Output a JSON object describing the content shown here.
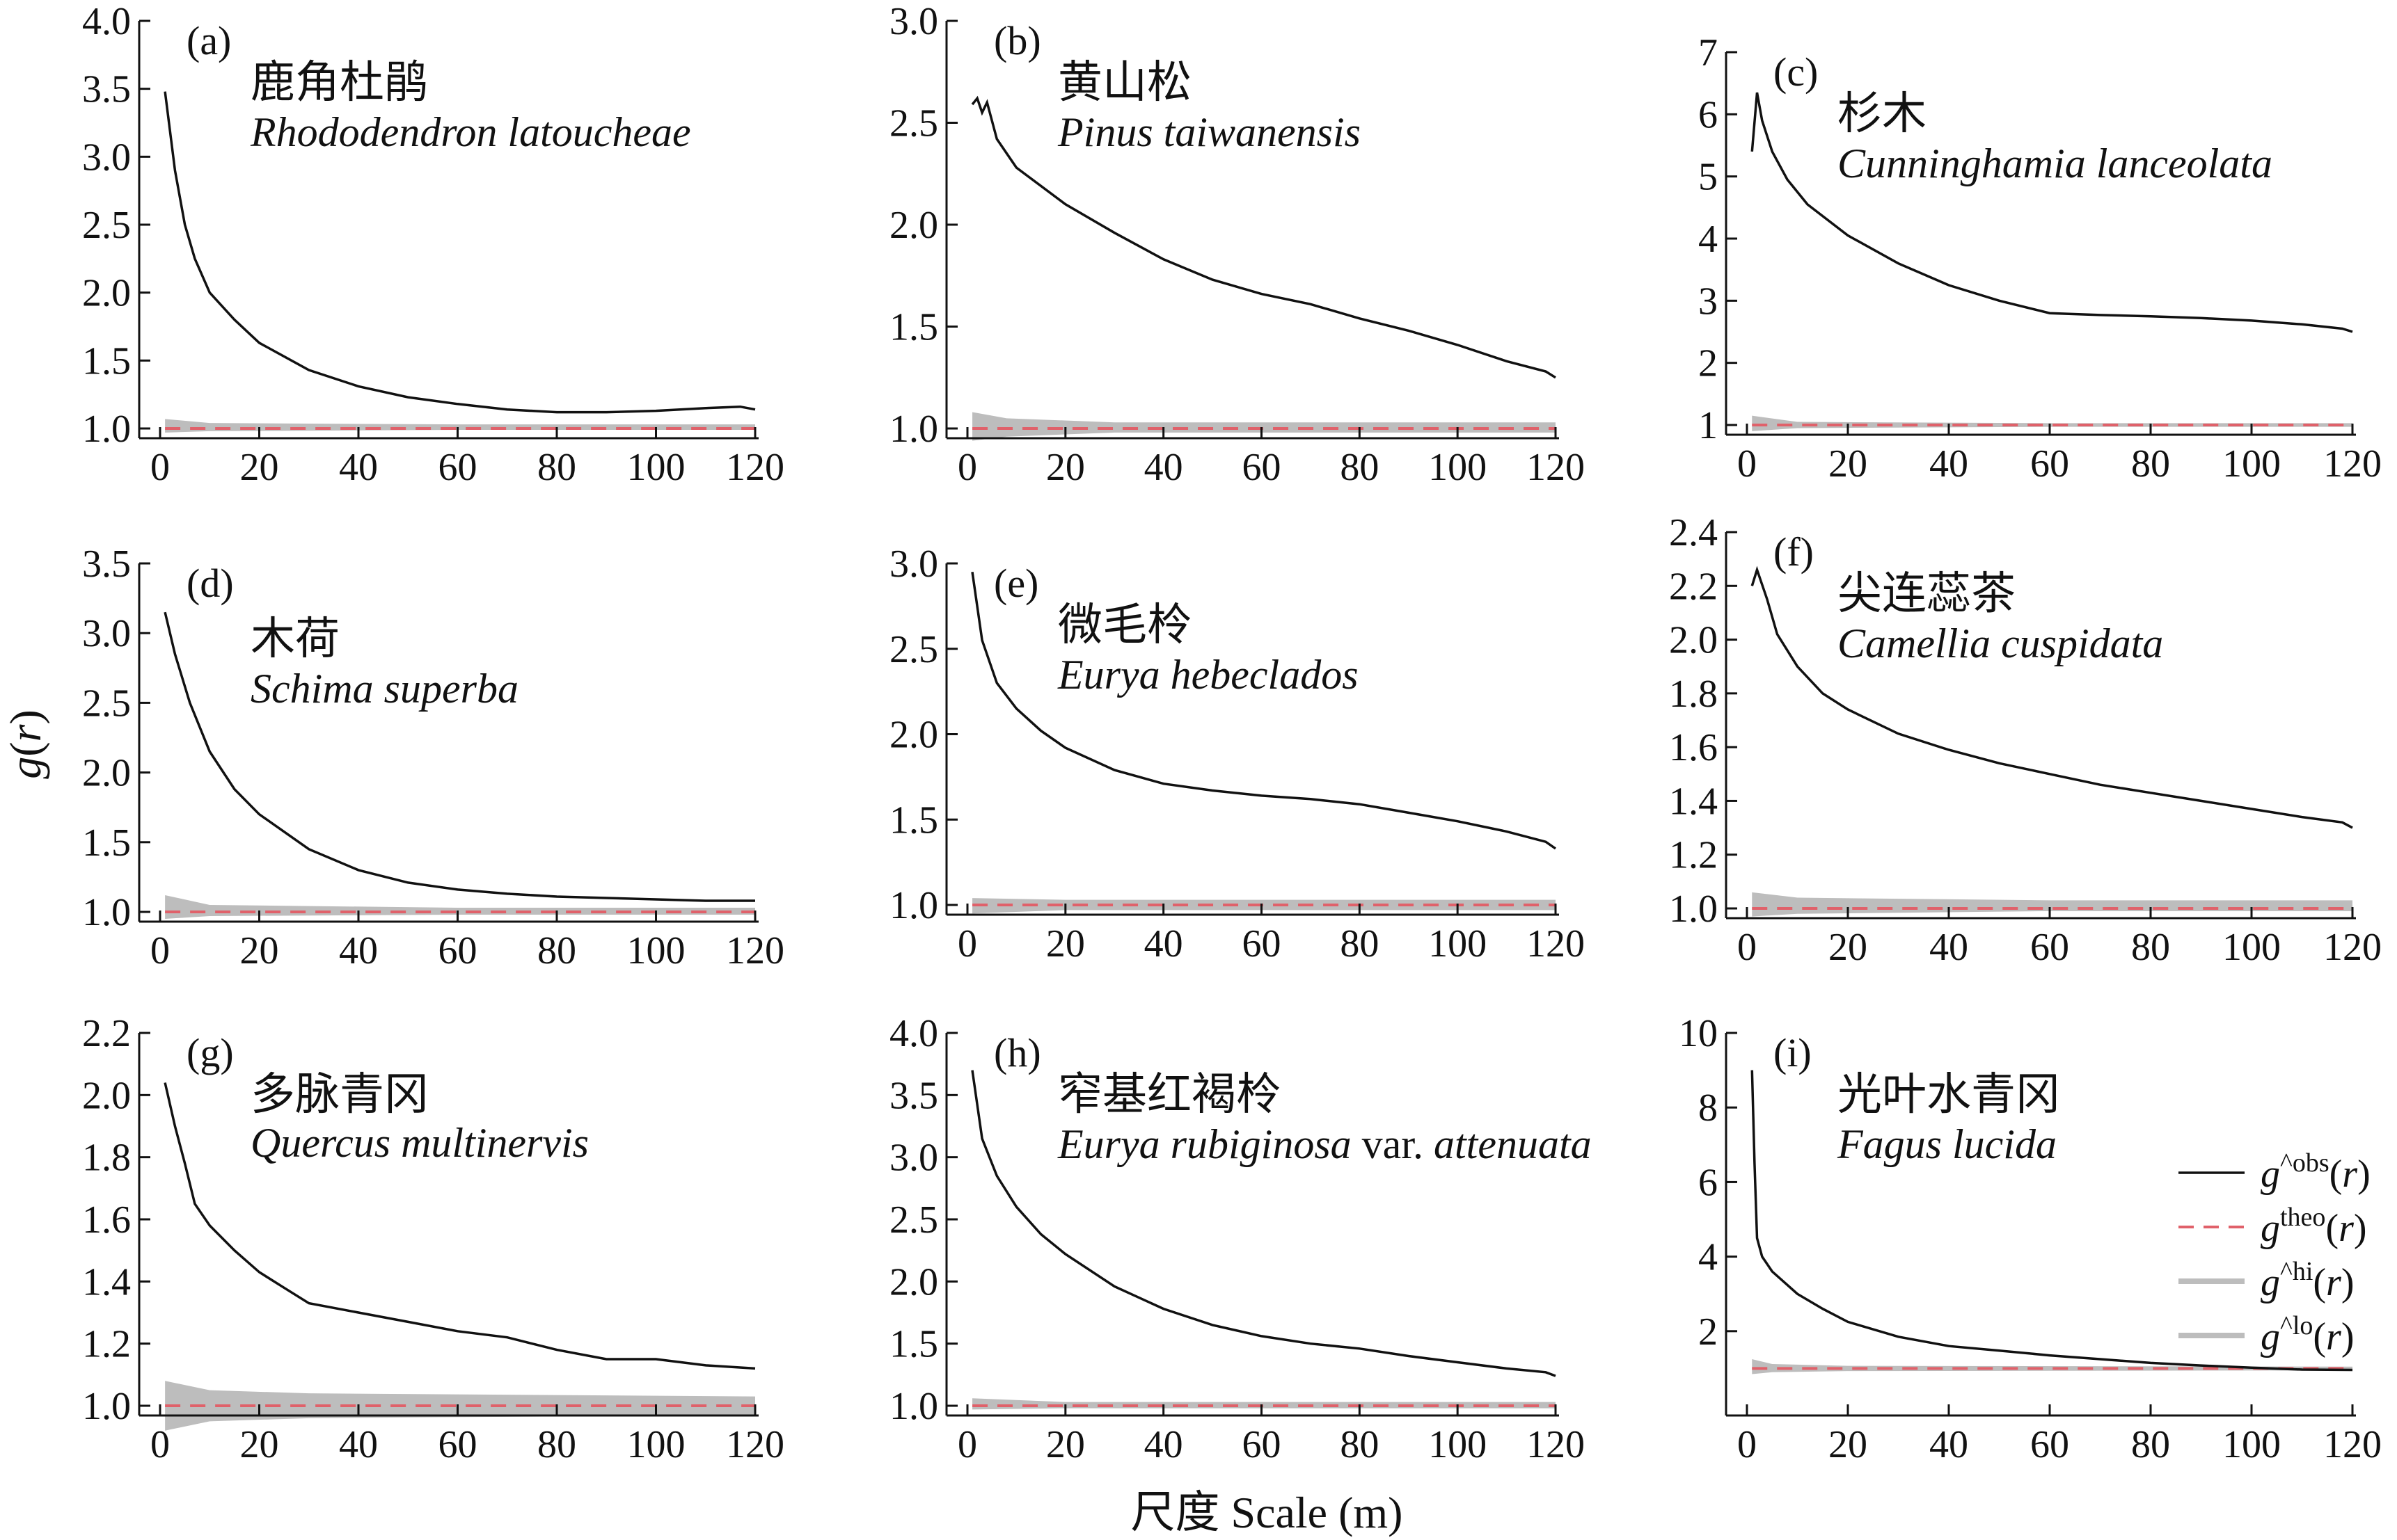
{
  "figure": {
    "ylabel_prefix": "g",
    "ylabel_var": "r",
    "xlabel": "尺度 Scale (m)"
  },
  "legend": [
    {
      "sym": "g",
      "sup": "^obs",
      "var": "r",
      "style": "obs"
    },
    {
      "sym": "g",
      "sup": "theo",
      "var": "r",
      "style": "theo"
    },
    {
      "sym": "g",
      "sup": "^hi",
      "var": "r",
      "style": "env"
    },
    {
      "sym": "g",
      "sup": "^lo",
      "var": "r",
      "style": "env"
    }
  ],
  "colors": {
    "observed": "#111111",
    "theoretical": "#e0616a",
    "envelope": "#bdbdbd"
  },
  "chart_data": [
    {
      "type": "line",
      "tag": "(a)",
      "cn": "鹿角杜鹃",
      "latin": "Rhododendron latoucheae",
      "xlim": [
        0,
        120
      ],
      "ylim": [
        1.0,
        4.0
      ],
      "xticks": [
        0,
        20,
        40,
        60,
        80,
        100,
        120
      ],
      "yticks": [
        1.0,
        1.5,
        2.0,
        2.5,
        3.0,
        3.5,
        4.0
      ],
      "ydec": 1,
      "obs": [
        [
          1,
          3.48
        ],
        [
          3,
          2.9
        ],
        [
          5,
          2.5
        ],
        [
          7,
          2.25
        ],
        [
          10,
          2.0
        ],
        [
          15,
          1.8
        ],
        [
          20,
          1.63
        ],
        [
          30,
          1.43
        ],
        [
          40,
          1.31
        ],
        [
          50,
          1.23
        ],
        [
          60,
          1.18
        ],
        [
          70,
          1.14
        ],
        [
          80,
          1.12
        ],
        [
          90,
          1.12
        ],
        [
          100,
          1.13
        ],
        [
          110,
          1.15
        ],
        [
          117,
          1.16
        ],
        [
          120,
          1.14
        ]
      ],
      "theo": 1.0,
      "env": [
        [
          1,
          0.97,
          1.07
        ],
        [
          10,
          0.98,
          1.04
        ],
        [
          60,
          0.99,
          1.03
        ],
        [
          120,
          0.99,
          1.03
        ]
      ]
    },
    {
      "type": "line",
      "tag": "(b)",
      "cn": "黄山松",
      "latin": "Pinus taiwanensis",
      "xlim": [
        0,
        120
      ],
      "ylim": [
        1.0,
        3.0
      ],
      "xticks": [
        0,
        20,
        40,
        60,
        80,
        100,
        120
      ],
      "yticks": [
        1.0,
        1.5,
        2.0,
        2.5,
        3.0
      ],
      "ydec": 1,
      "obs": [
        [
          1,
          2.59
        ],
        [
          2,
          2.62
        ],
        [
          3,
          2.55
        ],
        [
          4,
          2.6
        ],
        [
          6,
          2.42
        ],
        [
          10,
          2.28
        ],
        [
          20,
          2.1
        ],
        [
          30,
          1.96
        ],
        [
          40,
          1.83
        ],
        [
          50,
          1.73
        ],
        [
          60,
          1.66
        ],
        [
          70,
          1.61
        ],
        [
          80,
          1.54
        ],
        [
          90,
          1.48
        ],
        [
          100,
          1.41
        ],
        [
          110,
          1.33
        ],
        [
          118,
          1.28
        ],
        [
          120,
          1.25
        ]
      ],
      "theo": 1.0,
      "env": [
        [
          1,
          0.94,
          1.08
        ],
        [
          8,
          0.96,
          1.05
        ],
        [
          30,
          0.98,
          1.03
        ],
        [
          120,
          0.98,
          1.03
        ]
      ]
    },
    {
      "type": "line",
      "tag": "(c)",
      "cn": "杉木",
      "latin": "Cunninghamia lanceolata",
      "xlim": [
        0,
        120
      ],
      "ylim": [
        1,
        7
      ],
      "xticks": [
        0,
        20,
        40,
        60,
        80,
        100,
        120
      ],
      "yticks": [
        1,
        2,
        3,
        4,
        5,
        6,
        7
      ],
      "ydec": 0,
      "obs": [
        [
          1,
          5.4
        ],
        [
          2,
          6.35
        ],
        [
          3,
          5.9
        ],
        [
          5,
          5.4
        ],
        [
          8,
          4.95
        ],
        [
          12,
          4.55
        ],
        [
          20,
          4.05
        ],
        [
          30,
          3.6
        ],
        [
          40,
          3.25
        ],
        [
          50,
          3.0
        ],
        [
          60,
          2.8
        ],
        [
          70,
          2.77
        ],
        [
          80,
          2.75
        ],
        [
          90,
          2.72
        ],
        [
          100,
          2.68
        ],
        [
          110,
          2.62
        ],
        [
          118,
          2.55
        ],
        [
          120,
          2.5
        ]
      ],
      "theo": 1.0,
      "env": [
        [
          1,
          0.9,
          1.15
        ],
        [
          10,
          0.95,
          1.05
        ],
        [
          60,
          0.97,
          1.03
        ],
        [
          120,
          0.97,
          1.03
        ]
      ]
    },
    {
      "type": "line",
      "tag": "(d)",
      "cn": "木荷",
      "latin": "Schima superba",
      "xlim": [
        0,
        120
      ],
      "ylim": [
        1.0,
        3.5
      ],
      "xticks": [
        0,
        20,
        40,
        60,
        80,
        100,
        120
      ],
      "yticks": [
        1.0,
        1.5,
        2.0,
        2.5,
        3.0,
        3.5
      ],
      "ydec": 1,
      "obs": [
        [
          1,
          3.15
        ],
        [
          3,
          2.85
        ],
        [
          6,
          2.5
        ],
        [
          10,
          2.15
        ],
        [
          15,
          1.88
        ],
        [
          20,
          1.7
        ],
        [
          30,
          1.45
        ],
        [
          40,
          1.3
        ],
        [
          50,
          1.21
        ],
        [
          60,
          1.16
        ],
        [
          70,
          1.13
        ],
        [
          80,
          1.11
        ],
        [
          90,
          1.1
        ],
        [
          100,
          1.09
        ],
        [
          110,
          1.08
        ],
        [
          120,
          1.08
        ]
      ],
      "theo": 1.0,
      "env": [
        [
          1,
          0.95,
          1.12
        ],
        [
          10,
          0.97,
          1.05
        ],
        [
          60,
          0.98,
          1.03
        ],
        [
          120,
          0.98,
          1.03
        ]
      ]
    },
    {
      "type": "line",
      "tag": "(e)",
      "cn": "微毛柃",
      "latin": "Eurya hebeclados",
      "xlim": [
        0,
        120
      ],
      "ylim": [
        1.0,
        3.0
      ],
      "xticks": [
        0,
        20,
        40,
        60,
        80,
        100,
        120
      ],
      "yticks": [
        1.0,
        1.5,
        2.0,
        2.5,
        3.0
      ],
      "ydec": 1,
      "obs": [
        [
          1,
          2.95
        ],
        [
          3,
          2.55
        ],
        [
          6,
          2.3
        ],
        [
          10,
          2.15
        ],
        [
          15,
          2.02
        ],
        [
          20,
          1.92
        ],
        [
          30,
          1.79
        ],
        [
          40,
          1.71
        ],
        [
          50,
          1.67
        ],
        [
          60,
          1.64
        ],
        [
          70,
          1.62
        ],
        [
          80,
          1.59
        ],
        [
          90,
          1.54
        ],
        [
          100,
          1.49
        ],
        [
          110,
          1.43
        ],
        [
          118,
          1.37
        ],
        [
          120,
          1.33
        ]
      ],
      "theo": 1.0,
      "env": [
        [
          1,
          0.95,
          1.04
        ],
        [
          20,
          0.97,
          1.03
        ],
        [
          120,
          0.97,
          1.03
        ]
      ]
    },
    {
      "type": "line",
      "tag": "(f)",
      "cn": "尖连蕊茶",
      "latin": "Camellia cuspidata",
      "xlim": [
        0,
        120
      ],
      "ylim": [
        1.0,
        2.4
      ],
      "xticks": [
        0,
        20,
        40,
        60,
        80,
        100,
        120
      ],
      "yticks": [
        1.0,
        1.2,
        1.4,
        1.6,
        1.8,
        2.0,
        2.2,
        2.4
      ],
      "ydec": 1,
      "obs": [
        [
          1,
          2.2
        ],
        [
          2,
          2.26
        ],
        [
          4,
          2.15
        ],
        [
          6,
          2.02
        ],
        [
          10,
          1.9
        ],
        [
          15,
          1.8
        ],
        [
          20,
          1.74
        ],
        [
          30,
          1.65
        ],
        [
          40,
          1.59
        ],
        [
          50,
          1.54
        ],
        [
          60,
          1.5
        ],
        [
          70,
          1.46
        ],
        [
          80,
          1.43
        ],
        [
          90,
          1.4
        ],
        [
          100,
          1.37
        ],
        [
          110,
          1.34
        ],
        [
          118,
          1.32
        ],
        [
          120,
          1.3
        ]
      ],
      "theo": 1.0,
      "env": [
        [
          1,
          0.97,
          1.06
        ],
        [
          10,
          0.98,
          1.04
        ],
        [
          60,
          0.99,
          1.03
        ],
        [
          120,
          0.99,
          1.03
        ]
      ]
    },
    {
      "type": "line",
      "tag": "(g)",
      "cn": "多脉青冈",
      "latin": "Quercus multinervis",
      "xlim": [
        0,
        120
      ],
      "ylim": [
        1.0,
        2.2
      ],
      "xticks": [
        0,
        20,
        40,
        60,
        80,
        100,
        120
      ],
      "yticks": [
        1.0,
        1.2,
        1.4,
        1.6,
        1.8,
        2.0,
        2.2
      ],
      "ydec": 1,
      "obs": [
        [
          1,
          2.04
        ],
        [
          3,
          1.9
        ],
        [
          5,
          1.78
        ],
        [
          7,
          1.65
        ],
        [
          10,
          1.58
        ],
        [
          15,
          1.5
        ],
        [
          20,
          1.43
        ],
        [
          25,
          1.38
        ],
        [
          30,
          1.33
        ],
        [
          40,
          1.3
        ],
        [
          50,
          1.27
        ],
        [
          60,
          1.24
        ],
        [
          70,
          1.22
        ],
        [
          80,
          1.18
        ],
        [
          90,
          1.15
        ],
        [
          100,
          1.15
        ],
        [
          110,
          1.13
        ],
        [
          120,
          1.12
        ]
      ],
      "theo": 1.0,
      "env": [
        [
          1,
          0.92,
          1.08
        ],
        [
          10,
          0.95,
          1.05
        ],
        [
          30,
          0.96,
          1.04
        ],
        [
          120,
          0.97,
          1.03
        ]
      ]
    },
    {
      "type": "line",
      "tag": "(h)",
      "cn": "窄基红褐柃",
      "latin_it": "Eurya rubiginosa",
      "latin_var": " var. ",
      "latin_it2": "attenuata",
      "xlim": [
        0,
        120
      ],
      "ylim": [
        1.0,
        4.0
      ],
      "xticks": [
        0,
        20,
        40,
        60,
        80,
        100,
        120
      ],
      "yticks": [
        1.0,
        1.5,
        2.0,
        2.5,
        3.0,
        3.5,
        4.0
      ],
      "ydec": 1,
      "obs": [
        [
          1,
          3.7
        ],
        [
          3,
          3.15
        ],
        [
          6,
          2.85
        ],
        [
          10,
          2.6
        ],
        [
          15,
          2.38
        ],
        [
          20,
          2.22
        ],
        [
          30,
          1.96
        ],
        [
          40,
          1.78
        ],
        [
          50,
          1.65
        ],
        [
          60,
          1.56
        ],
        [
          70,
          1.5
        ],
        [
          80,
          1.46
        ],
        [
          90,
          1.4
        ],
        [
          100,
          1.35
        ],
        [
          110,
          1.3
        ],
        [
          118,
          1.27
        ],
        [
          120,
          1.24
        ]
      ],
      "theo": 1.0,
      "env": [
        [
          1,
          0.97,
          1.06
        ],
        [
          20,
          0.98,
          1.03
        ],
        [
          120,
          0.98,
          1.03
        ]
      ]
    },
    {
      "type": "line",
      "tag": "(i)",
      "cn": "光叶水青冈",
      "latin": "Fagus lucida",
      "xlim": [
        0,
        120
      ],
      "ylim": [
        0,
        10
      ],
      "xticks": [
        0,
        20,
        40,
        60,
        80,
        100,
        120
      ],
      "yticks": [
        2,
        4,
        6,
        8,
        10
      ],
      "ydec": 0,
      "obs": [
        [
          1,
          9.0
        ],
        [
          1.5,
          6.5
        ],
        [
          2,
          4.5
        ],
        [
          3,
          4.0
        ],
        [
          5,
          3.6
        ],
        [
          10,
          3.0
        ],
        [
          15,
          2.6
        ],
        [
          20,
          2.25
        ],
        [
          30,
          1.85
        ],
        [
          40,
          1.6
        ],
        [
          50,
          1.48
        ],
        [
          60,
          1.35
        ],
        [
          70,
          1.25
        ],
        [
          80,
          1.15
        ],
        [
          90,
          1.08
        ],
        [
          100,
          1.02
        ],
        [
          110,
          0.97
        ],
        [
          120,
          0.96
        ]
      ],
      "theo": 1.0,
      "env": [
        [
          1,
          0.85,
          1.25
        ],
        [
          5,
          0.9,
          1.12
        ],
        [
          20,
          0.93,
          1.07
        ],
        [
          120,
          0.95,
          1.05
        ]
      ]
    }
  ]
}
